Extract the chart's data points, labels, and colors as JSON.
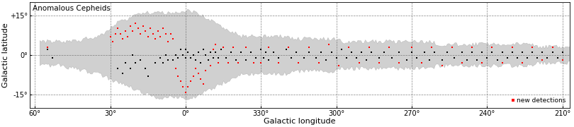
{
  "title": "Anomalous Cepheids",
  "xlabel": "Galactic longitude",
  "ylabel": "Galactic latitude",
  "legend_label": "new detections",
  "ylim_deg": [
    -20,
    20
  ],
  "xticks_deg": [
    60,
    30,
    0,
    330,
    300,
    270,
    240,
    210
  ],
  "yticks_deg": [
    -15,
    0,
    15
  ],
  "footprint_color": "#d0d0d0",
  "footprint_edge_color": "#b0b0b0",
  "black_points_lon_lat": [
    [
      55,
      2
    ],
    [
      53,
      -1
    ],
    [
      27,
      -5
    ],
    [
      25,
      -7
    ],
    [
      24,
      -3
    ],
    [
      22,
      -5
    ],
    [
      21,
      0
    ],
    [
      20,
      -3
    ],
    [
      18,
      -2
    ],
    [
      16,
      -5
    ],
    [
      15,
      -8
    ],
    [
      12,
      -3
    ],
    [
      10,
      -1
    ],
    [
      9,
      -3
    ],
    [
      8,
      0
    ],
    [
      7,
      -2
    ],
    [
      5,
      -2
    ],
    [
      4,
      0
    ],
    [
      3,
      -1
    ],
    [
      2,
      2
    ],
    [
      1,
      0
    ],
    [
      0,
      2
    ],
    [
      0,
      -1
    ],
    [
      359,
      1
    ],
    [
      358,
      -1
    ],
    [
      357,
      0
    ],
    [
      356,
      -2
    ],
    [
      355,
      1
    ],
    [
      354,
      -3
    ],
    [
      353,
      2
    ],
    [
      352,
      0
    ],
    [
      351,
      -2
    ],
    [
      350,
      1
    ],
    [
      349,
      -1
    ],
    [
      348,
      1
    ],
    [
      347,
      -1
    ],
    [
      346,
      2
    ],
    [
      344,
      -1
    ],
    [
      342,
      1
    ],
    [
      340,
      -2
    ],
    [
      338,
      1
    ],
    [
      336,
      -2
    ],
    [
      334,
      1
    ],
    [
      332,
      -1
    ],
    [
      330,
      2
    ],
    [
      329,
      -1
    ],
    [
      328,
      1
    ],
    [
      327,
      -2
    ],
    [
      325,
      1
    ],
    [
      323,
      -1
    ],
    [
      320,
      2
    ],
    [
      318,
      -1
    ],
    [
      316,
      1
    ],
    [
      313,
      -1
    ],
    [
      311,
      1
    ],
    [
      308,
      -1
    ],
    [
      306,
      1
    ],
    [
      304,
      -2
    ],
    [
      302,
      1
    ],
    [
      300,
      -1
    ],
    [
      298,
      2
    ],
    [
      296,
      -1
    ],
    [
      294,
      1
    ],
    [
      292,
      -1
    ],
    [
      290,
      1
    ],
    [
      288,
      -2
    ],
    [
      286,
      1
    ],
    [
      283,
      -1
    ],
    [
      281,
      1
    ],
    [
      278,
      -1
    ],
    [
      275,
      1
    ],
    [
      272,
      -2
    ],
    [
      270,
      1
    ],
    [
      268,
      -1
    ],
    [
      265,
      1
    ],
    [
      263,
      -2
    ],
    [
      261,
      1
    ],
    [
      258,
      -2
    ],
    [
      256,
      1
    ],
    [
      253,
      -1
    ],
    [
      250,
      1
    ],
    [
      248,
      -2
    ],
    [
      246,
      1
    ],
    [
      244,
      -2
    ],
    [
      242,
      1
    ],
    [
      240,
      -1
    ],
    [
      238,
      1
    ],
    [
      236,
      -2
    ],
    [
      234,
      1
    ],
    [
      232,
      -1
    ],
    [
      230,
      1
    ],
    [
      228,
      -1
    ],
    [
      226,
      1
    ],
    [
      224,
      -1
    ],
    [
      222,
      1
    ],
    [
      220,
      -1
    ],
    [
      218,
      1
    ],
    [
      216,
      -1
    ],
    [
      214,
      1
    ],
    [
      212,
      -1
    ],
    [
      210,
      1
    ]
  ],
  "red_points_lon_lat": [
    [
      55,
      3
    ],
    [
      30,
      7
    ],
    [
      29,
      5
    ],
    [
      28,
      8
    ],
    [
      27,
      10
    ],
    [
      26,
      8
    ],
    [
      25,
      6
    ],
    [
      24,
      9
    ],
    [
      23,
      7
    ],
    [
      22,
      11
    ],
    [
      21,
      9
    ],
    [
      20,
      12
    ],
    [
      19,
      10
    ],
    [
      18,
      8
    ],
    [
      17,
      11
    ],
    [
      16,
      9
    ],
    [
      15,
      7
    ],
    [
      14,
      10
    ],
    [
      13,
      8
    ],
    [
      12,
      6
    ],
    [
      11,
      9
    ],
    [
      10,
      7
    ],
    [
      9,
      10
    ],
    [
      8,
      8
    ],
    [
      7,
      5
    ],
    [
      6,
      8
    ],
    [
      5,
      6
    ],
    [
      4,
      -5
    ],
    [
      3,
      -8
    ],
    [
      2,
      -10
    ],
    [
      1,
      -12
    ],
    [
      0,
      -14
    ],
    [
      359,
      -12
    ],
    [
      358,
      -10
    ],
    [
      357,
      -8
    ],
    [
      356,
      -5
    ],
    [
      355,
      -7
    ],
    [
      354,
      -9
    ],
    [
      353,
      -11
    ],
    [
      352,
      -6
    ],
    [
      350,
      -4
    ],
    [
      349,
      2
    ],
    [
      348,
      4
    ],
    [
      347,
      -3
    ],
    [
      345,
      3
    ],
    [
      343,
      -3
    ],
    [
      341,
      3
    ],
    [
      339,
      -3
    ],
    [
      336,
      3
    ],
    [
      333,
      -3
    ],
    [
      330,
      -3
    ],
    [
      327,
      3
    ],
    [
      323,
      -3
    ],
    [
      319,
      3
    ],
    [
      315,
      -3
    ],
    [
      311,
      3
    ],
    [
      307,
      -3
    ],
    [
      303,
      4
    ],
    [
      299,
      -4
    ],
    [
      295,
      3
    ],
    [
      291,
      -3
    ],
    [
      287,
      3
    ],
    [
      283,
      -3
    ],
    [
      279,
      3
    ],
    [
      275,
      -3
    ],
    [
      270,
      3
    ],
    [
      266,
      -3
    ],
    [
      262,
      3
    ],
    [
      258,
      -4
    ],
    [
      254,
      3
    ],
    [
      250,
      -3
    ],
    [
      246,
      3
    ],
    [
      242,
      -3
    ],
    [
      238,
      3
    ],
    [
      234,
      -3
    ],
    [
      230,
      3
    ],
    [
      226,
      -3
    ],
    [
      222,
      3
    ],
    [
      218,
      -2
    ],
    [
      214,
      3
    ],
    [
      210,
      -2
    ]
  ],
  "footprint": {
    "lon": [
      62,
      58,
      55,
      50,
      45,
      40,
      35,
      32,
      30,
      28,
      25,
      22,
      20,
      18,
      15,
      12,
      10,
      8,
      6,
      4,
      2,
      0,
      358,
      356,
      354,
      352,
      350,
      348,
      346,
      344,
      342,
      340,
      338,
      336,
      334,
      332,
      330,
      328,
      326,
      324,
      322,
      320,
      318,
      316,
      314,
      312,
      310,
      308,
      306,
      304,
      302,
      300,
      298,
      296,
      294,
      292,
      290,
      288,
      286,
      284,
      282,
      280,
      278,
      276,
      274,
      272,
      270,
      268,
      266,
      264,
      262,
      260,
      258,
      256,
      254,
      252,
      250,
      248,
      246,
      244,
      242,
      240,
      238,
      236,
      234,
      232,
      230,
      228,
      226,
      224,
      222,
      220,
      218,
      216,
      214,
      212,
      210,
      208
    ],
    "lat_hi": [
      5,
      5,
      5,
      5,
      5,
      6,
      7,
      8,
      10,
      12,
      13,
      14,
      15,
      16,
      16,
      16,
      16,
      16,
      16,
      16,
      16,
      17,
      16,
      16,
      15,
      14,
      13,
      12,
      11,
      10,
      9,
      8,
      7,
      7,
      7,
      7,
      7,
      7,
      7,
      7,
      7,
      7,
      6,
      6,
      6,
      6,
      6,
      6,
      6,
      6,
      6,
      6,
      5,
      5,
      5,
      5,
      5,
      5,
      5,
      5,
      5,
      5,
      5,
      5,
      5,
      5,
      5,
      5,
      5,
      5,
      5,
      4,
      4,
      4,
      4,
      4,
      4,
      4,
      4,
      4,
      4,
      4,
      4,
      4,
      4,
      4,
      4,
      4,
      4,
      4,
      4,
      3,
      3,
      3,
      3,
      3,
      3,
      3
    ],
    "lat_lo": [
      -4,
      -4,
      -4,
      -4,
      -5,
      -6,
      -7,
      -8,
      -9,
      -10,
      -11,
      -12,
      -13,
      -14,
      -15,
      -16,
      -16,
      -16,
      -16,
      -16,
      -16,
      -17,
      -16,
      -16,
      -15,
      -14,
      -13,
      -12,
      -11,
      -10,
      -9,
      -8,
      -7,
      -7,
      -7,
      -7,
      -7,
      -7,
      -7,
      -7,
      -7,
      -7,
      -6,
      -6,
      -6,
      -6,
      -6,
      -6,
      -6,
      -6,
      -6,
      -6,
      -5,
      -5,
      -5,
      -5,
      -5,
      -5,
      -5,
      -5,
      -5,
      -5,
      -5,
      -5,
      -5,
      -5,
      -5,
      -5,
      -5,
      -5,
      -5,
      -4,
      -4,
      -4,
      -4,
      -4,
      -4,
      -4,
      -4,
      -4,
      -4,
      -4,
      -4,
      -4,
      -4,
      -4,
      -4,
      -4,
      -4,
      -4,
      -4,
      -3,
      -3,
      -3,
      -3,
      -3,
      -3,
      -3
    ]
  }
}
